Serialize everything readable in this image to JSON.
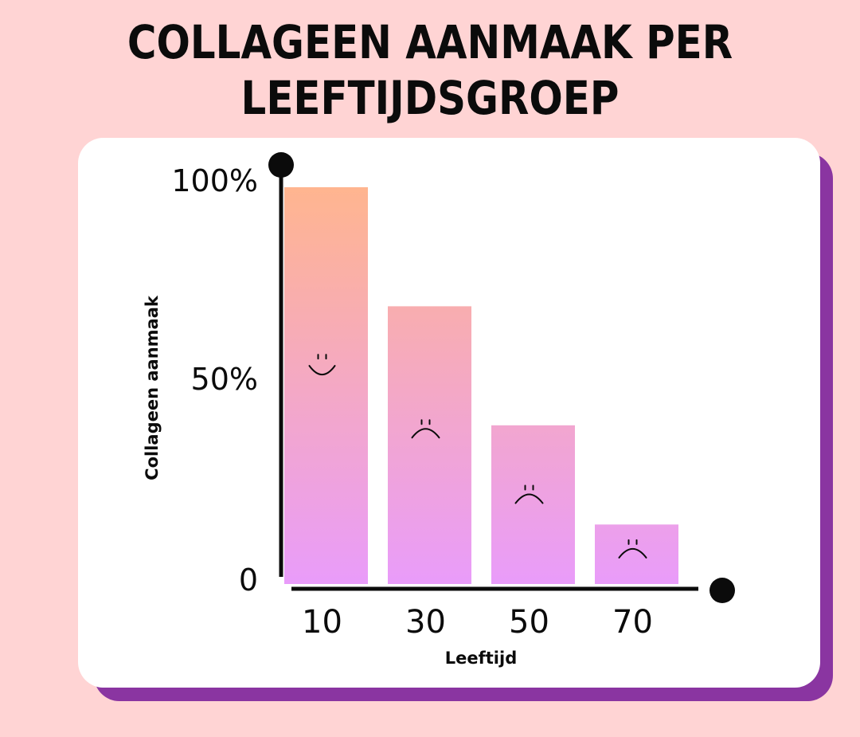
{
  "chart_data": {
    "type": "bar",
    "title_lines": [
      "COLLAGEEN AANMAAK PER",
      "LEEFTIJDSGROEP"
    ],
    "xlabel": "Leeftijd",
    "ylabel": "Collageen aanmaak",
    "categories": [
      "10",
      "30",
      "50",
      "70"
    ],
    "values": [
      100,
      70,
      40,
      15
    ],
    "ylim": [
      0,
      100
    ],
    "yticks": [
      {
        "value": 0,
        "label": "0"
      },
      {
        "value": 50,
        "label": "50%"
      },
      {
        "value": 100,
        "label": "100%"
      }
    ],
    "bar_faces": [
      "smile",
      "frown",
      "frown",
      "frown"
    ],
    "bar_gradient": {
      "top": "#ffb58f",
      "bottom": "#e99cfa"
    },
    "grid": false,
    "legend": "none"
  },
  "colors": {
    "background": "#ffd4d4",
    "card": "#ffffff",
    "card_shadow": "#8a35a1",
    "ink": "#0b0b0b"
  }
}
